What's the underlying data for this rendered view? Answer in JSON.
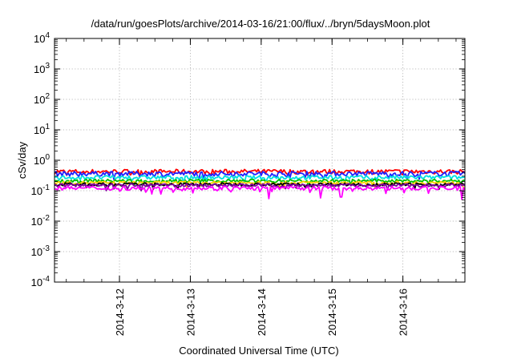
{
  "chart_data": {
    "type": "line",
    "title": "/data/run/goesPlots/archive/2014-03-16/21:00/flux/../bryn/5daysMoon.plot",
    "xlabel": "Coordinated Universal Time (UTC)",
    "ylabel": "cSv/day",
    "y_scale": "log",
    "ylim": [
      0.0001,
      10000
    ],
    "y_ticks": [
      {
        "base": "10",
        "exp": "-4"
      },
      {
        "base": "10",
        "exp": "-3"
      },
      {
        "base": "10",
        "exp": "-2"
      },
      {
        "base": "10",
        "exp": "-1"
      },
      {
        "base": "10",
        "exp": "0"
      },
      {
        "base": "10",
        "exp": "1"
      },
      {
        "base": "10",
        "exp": "2"
      },
      {
        "base": "10",
        "exp": "3"
      },
      {
        "base": "10",
        "exp": "4"
      }
    ],
    "xlim": [
      "2014-03-11 02:00",
      "2014-03-16 21:00"
    ],
    "x_ticks": [
      "2014-3-12",
      "2014-3-13",
      "2014-3-14",
      "2014-3-15",
      "2014-3-16"
    ],
    "grid": true,
    "series": [
      {
        "color": "#ff0000",
        "base": 0.42,
        "spread": 0.18
      },
      {
        "color": "#2020ff",
        "base": 0.36,
        "spread": 0.18
      },
      {
        "color": "#00e0e0",
        "base": 0.27,
        "spread": 0.15
      },
      {
        "color": "#00c000",
        "base": 0.21,
        "spread": 0.12
      },
      {
        "color": "#ffd000",
        "base": 0.18,
        "spread": 0.12
      },
      {
        "color": "#000000",
        "base": 0.16,
        "spread": 0.12
      },
      {
        "color": "#8000a0",
        "base": 0.15,
        "spread": 0.12
      },
      {
        "color": "#ff00ff",
        "base": 0.12,
        "spread": 0.15
      }
    ],
    "dips": [
      {
        "x": "2014-03-14 02:30",
        "value": 0.055
      },
      {
        "x": "2014-03-14 20:00",
        "value": 0.058
      },
      {
        "x": "2014-03-15 03:00",
        "value": 0.062
      },
      {
        "x": "2014-03-16 20:00",
        "value": 0.052
      }
    ]
  }
}
